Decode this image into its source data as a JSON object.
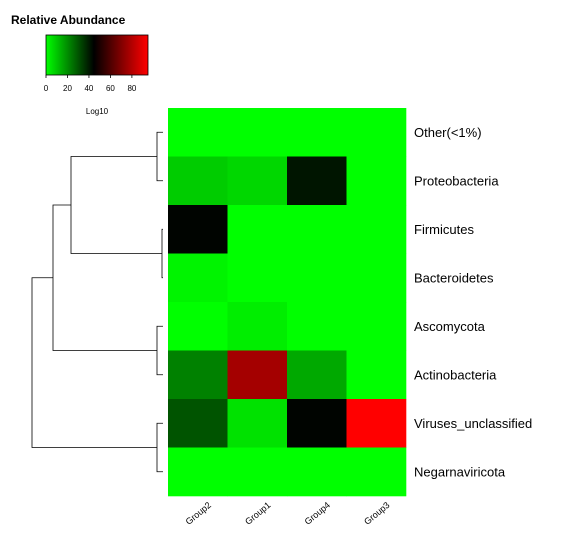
{
  "chart_data": {
    "type": "heatmap",
    "legend_title": "Relative Abundance",
    "legend_xlabel": "Log10",
    "legend_ticks": [
      "0",
      "20",
      "40",
      "60",
      "80"
    ],
    "legend_range": [
      0,
      95
    ],
    "columns": [
      "Group2",
      "Group1",
      "Group4",
      "Group3"
    ],
    "rows": [
      "Other(<1%)",
      "Proteobacteria",
      "Firmicutes",
      "Bacteroidetes",
      "Ascomycota",
      "Actinobacteria",
      "Viruses_unclassified",
      "Negarnaviricota"
    ],
    "values": [
      [
        0,
        0,
        0,
        0
      ],
      [
        9,
        7,
        41,
        0
      ],
      [
        44,
        0,
        0,
        0
      ],
      [
        2,
        0,
        0,
        0
      ],
      [
        0,
        3,
        0,
        0
      ],
      [
        22,
        77,
        15,
        0
      ],
      [
        30,
        5,
        44,
        96
      ],
      [
        0,
        0,
        0,
        0
      ]
    ],
    "color_scale": {
      "low": "#00ff00",
      "mid": "#000000",
      "high": "#ff0000"
    },
    "row_dendrogram": "left"
  }
}
